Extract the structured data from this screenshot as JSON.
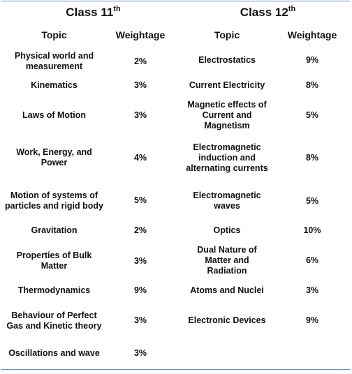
{
  "class11": {
    "title": "Class 11",
    "title_sup": "th",
    "topic_header": "Topic",
    "weight_header": "Weightage",
    "rows": [
      {
        "topic": "Physical world and measurement",
        "weight": "2%"
      },
      {
        "topic": "Kinematics",
        "weight": "3%"
      },
      {
        "topic": "Laws of Motion",
        "weight": "3%"
      },
      {
        "topic": "Work, Energy, and Power",
        "weight": "4%"
      },
      {
        "topic": "Motion of systems of particles and rigid body",
        "weight": "5%"
      },
      {
        "topic": "Gravitation",
        "weight": "2%"
      },
      {
        "topic": "Properties of Bulk Matter",
        "weight": "3%"
      },
      {
        "topic": "Thermodynamics",
        "weight": "9%"
      },
      {
        "topic": "Behaviour of Perfect Gas and Kinetic theory",
        "weight": "3%"
      },
      {
        "topic": "Oscillations and wave",
        "weight": "3%"
      }
    ]
  },
  "class12": {
    "title": "Class 12",
    "title_sup": "th",
    "topic_header": "Topic",
    "weight_header": "Weightage",
    "rows": [
      {
        "topic": "Electrostatics",
        "weight": "9%"
      },
      {
        "topic": "Current Electricity",
        "weight": "8%"
      },
      {
        "topic": "Magnetic effects of Current and Magnetism",
        "weight": "5%"
      },
      {
        "topic": "Electromagnetic induction and alternating currents",
        "weight": "8%"
      },
      {
        "topic": "Electromagnetic waves",
        "weight": "5%"
      },
      {
        "topic": "Optics",
        "weight": "10%"
      },
      {
        "topic": "Dual Nature of Matter and Radiation",
        "weight": "6%"
      },
      {
        "topic": "Atoms and Nuclei",
        "weight": "3%"
      },
      {
        "topic": "Electronic Devices",
        "weight": "9%"
      }
    ]
  }
}
